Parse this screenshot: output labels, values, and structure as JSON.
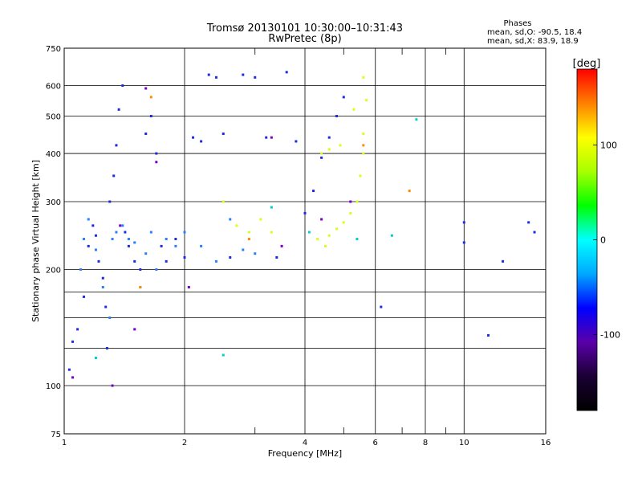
{
  "chart_data": {
    "type": "scatter",
    "title": "Tromsø 20130101 10:30:00–10:31:43",
    "subtitle": "RwPretec (8p)",
    "xlabel": "Frequency [MHz]",
    "ylabel": "Stationary phase Virtual Height [km]",
    "x_scale": "log",
    "y_scale": "log",
    "xlim": [
      1,
      16
    ],
    "ylim": [
      75,
      750
    ],
    "x_ticks": [
      1,
      2,
      4,
      6,
      8,
      10,
      16
    ],
    "x_minor_ticks": [
      3,
      5,
      7,
      9
    ],
    "y_ticks": [
      75,
      100,
      200,
      300,
      400,
      500,
      600,
      750
    ],
    "y_extra_gridlines": [
      125,
      150,
      175
    ],
    "grid": true,
    "phase_box": {
      "heading": "Phases",
      "line_o": "mean, sd,O: -90.5, 18.4",
      "line_x": "mean, sd,X: 83.9, 18.9"
    },
    "colorbar": {
      "label": "[deg]",
      "range": [
        -180,
        180
      ],
      "ticks": [
        100,
        0,
        -100
      ],
      "colors": [
        "#000000",
        "#1a0033",
        "#5a00a8",
        "#0000ff",
        "#00a8ff",
        "#00ffff",
        "#00ff00",
        "#a8ff00",
        "#ffff00",
        "#ff8000",
        "#ff0000"
      ]
    },
    "series": [
      {
        "color": "#1a2be6",
        "points": [
          [
            1.03,
            110
          ],
          [
            1.05,
            130
          ],
          [
            1.08,
            140
          ],
          [
            1.12,
            170
          ],
          [
            1.15,
            230
          ],
          [
            1.18,
            260
          ],
          [
            1.2,
            245
          ],
          [
            1.22,
            210
          ],
          [
            1.25,
            190
          ],
          [
            1.27,
            160
          ],
          [
            1.28,
            125
          ],
          [
            1.3,
            300
          ],
          [
            1.33,
            350
          ],
          [
            1.35,
            420
          ],
          [
            1.37,
            520
          ],
          [
            1.4,
            600
          ],
          [
            1.42,
            250
          ],
          [
            1.45,
            230
          ],
          [
            1.5,
            210
          ],
          [
            1.55,
            200
          ],
          [
            1.6,
            450
          ],
          [
            1.65,
            500
          ],
          [
            1.7,
            400
          ],
          [
            1.75,
            230
          ],
          [
            1.8,
            210
          ],
          [
            1.9,
            240
          ],
          [
            2.0,
            215
          ],
          [
            2.1,
            440
          ],
          [
            2.2,
            430
          ],
          [
            2.3,
            640
          ],
          [
            2.4,
            630
          ],
          [
            2.5,
            450
          ],
          [
            2.6,
            215
          ],
          [
            2.8,
            640
          ],
          [
            3.0,
            630
          ],
          [
            3.2,
            440
          ],
          [
            3.4,
            215
          ],
          [
            3.6,
            650
          ],
          [
            3.8,
            430
          ],
          [
            4.0,
            280
          ],
          [
            4.2,
            320
          ],
          [
            4.4,
            390
          ],
          [
            4.6,
            440
          ],
          [
            4.8,
            500
          ],
          [
            5.0,
            560
          ]
        ]
      },
      {
        "color": "#2a7fff",
        "points": [
          [
            1.1,
            200
          ],
          [
            1.12,
            240
          ],
          [
            1.15,
            270
          ],
          [
            1.2,
            225
          ],
          [
            1.25,
            180
          ],
          [
            1.3,
            150
          ],
          [
            1.32,
            240
          ],
          [
            1.35,
            250
          ],
          [
            1.4,
            260
          ],
          [
            1.45,
            240
          ],
          [
            1.5,
            235
          ],
          [
            1.55,
            180
          ],
          [
            1.6,
            220
          ],
          [
            1.65,
            250
          ],
          [
            1.7,
            200
          ],
          [
            1.8,
            240
          ],
          [
            1.9,
            230
          ],
          [
            2.0,
            250
          ],
          [
            2.2,
            230
          ],
          [
            2.4,
            210
          ],
          [
            2.6,
            270
          ],
          [
            2.8,
            225
          ],
          [
            3.0,
            220
          ]
        ]
      },
      {
        "color": "#d8ff1a",
        "points": [
          [
            2.5,
            300
          ],
          [
            2.7,
            260
          ],
          [
            2.9,
            250
          ],
          [
            3.1,
            270
          ],
          [
            3.3,
            250
          ],
          [
            4.3,
            240
          ],
          [
            4.5,
            230
          ],
          [
            4.6,
            245
          ],
          [
            4.8,
            255
          ],
          [
            5.0,
            265
          ],
          [
            5.2,
            280
          ],
          [
            5.4,
            300
          ],
          [
            5.5,
            350
          ],
          [
            5.6,
            400
          ],
          [
            5.6,
            450
          ],
          [
            5.7,
            550
          ],
          [
            5.6,
            630
          ],
          [
            4.9,
            420
          ],
          [
            4.6,
            410
          ],
          [
            4.4,
            400
          ],
          [
            5.3,
            520
          ]
        ]
      },
      {
        "color": "#7a00c8",
        "points": [
          [
            1.05,
            105
          ],
          [
            1.32,
            100
          ],
          [
            1.38,
            260
          ],
          [
            1.5,
            140
          ],
          [
            1.6,
            590
          ],
          [
            1.7,
            380
          ],
          [
            2.05,
            180
          ],
          [
            3.3,
            440
          ],
          [
            3.5,
            230
          ],
          [
            4.4,
            270
          ],
          [
            5.2,
            300
          ]
        ]
      },
      {
        "color": "#00d0c8",
        "points": [
          [
            1.2,
            118
          ],
          [
            2.5,
            120
          ],
          [
            3.3,
            290
          ],
          [
            4.1,
            250
          ],
          [
            5.4,
            240
          ],
          [
            6.6,
            245
          ],
          [
            7.6,
            490
          ]
        ]
      },
      {
        "color": "#ff8c00",
        "points": [
          [
            1.55,
            180
          ],
          [
            1.65,
            560
          ],
          [
            2.9,
            240
          ],
          [
            5.6,
            420
          ],
          [
            7.3,
            320
          ]
        ]
      },
      {
        "color": "#1a2be6",
        "points": [
          [
            6.2,
            160
          ],
          [
            10.0,
            265
          ],
          [
            10.0,
            235
          ],
          [
            11.5,
            135
          ],
          [
            12.5,
            210
          ],
          [
            14.5,
            265
          ],
          [
            15.0,
            250
          ]
        ]
      }
    ]
  }
}
